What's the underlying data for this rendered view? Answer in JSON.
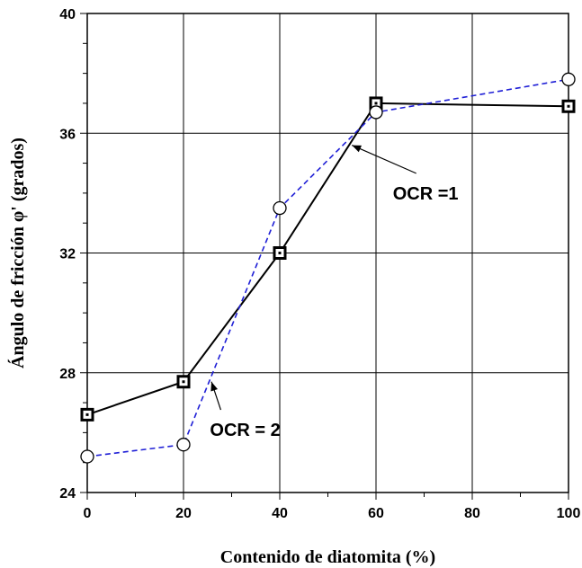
{
  "chart_data": {
    "type": "line",
    "title": "",
    "xlabel": "Contenido de diatomita (%)",
    "ylabel": "Ángulo de fricción φ' (grados)",
    "x_ticks": [
      "0",
      "20",
      "40",
      "60",
      "80",
      "100"
    ],
    "x_tick_values": [
      0,
      20,
      40,
      60,
      80,
      100
    ],
    "y_ticks": [
      "24",
      "28",
      "32",
      "36",
      "40"
    ],
    "y_tick_values": [
      24,
      28,
      32,
      36,
      40
    ],
    "xlim": [
      0,
      100
    ],
    "ylim": [
      24,
      40
    ],
    "grid": true,
    "series": [
      {
        "x": [
          0,
          20,
          40,
          60,
          100
        ],
        "y": [
          26.6,
          27.7,
          32.0,
          37.0,
          36.9
        ],
        "color": "#000000",
        "line_style": "solid",
        "marker": "square"
      },
      {
        "x": [
          0,
          20,
          40,
          60,
          100
        ],
        "y": [
          25.2,
          25.6,
          33.5,
          36.7,
          37.8
        ],
        "color": "#1f1fd6",
        "line_style": "dashed",
        "marker": "circle"
      }
    ],
    "annotations": [
      {
        "text": "OCR =1",
        "text_at": [
          63.5,
          34.0
        ],
        "arrow_to": [
          55.0,
          35.6
        ]
      },
      {
        "text": "OCR = 2",
        "text_at": [
          25.5,
          26.1
        ],
        "arrow_to": [
          25.8,
          27.7
        ]
      }
    ]
  }
}
